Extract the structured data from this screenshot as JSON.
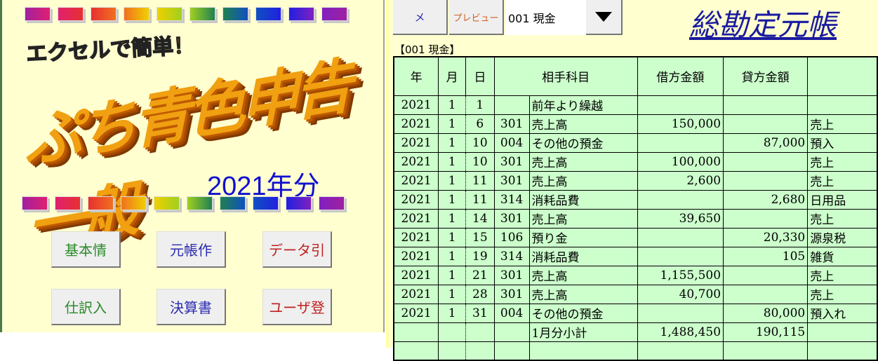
{
  "left": {
    "strip_colors": [
      "#a020a0",
      "#e02070",
      "#e83030",
      "#f07020",
      "#f0d000",
      "#a0d020",
      "#208050",
      "#1050c0",
      "#2020e0",
      "#8020c0"
    ],
    "tagline": "エクセルで簡単！",
    "logo": "ぷち青色申告一般",
    "year": "2021年分",
    "buttons": [
      {
        "label": "基本情",
        "color": "g"
      },
      {
        "label": "元帳作",
        "color": "b"
      },
      {
        "label": "データ引",
        "color": "r"
      },
      {
        "label": "仕訳入",
        "color": "g"
      },
      {
        "label": "決算書",
        "color": "b"
      },
      {
        "label": "ユーザ登",
        "color": "r"
      }
    ]
  },
  "toolbar": {
    "menu": "メ",
    "preview": "プレビュー",
    "account_select": "001 現金",
    "dropdown_icon": "triangle-down"
  },
  "title": "総勘定元帳",
  "account_label": "【001  現金】",
  "table": {
    "headers": [
      "年",
      "月",
      "日",
      "相手科目",
      "借方金額",
      "貸方金額",
      ""
    ],
    "rows": [
      [
        "2021",
        "1",
        "1",
        "",
        "前年より繰越",
        "",
        "",
        ""
      ],
      [
        "2021",
        "1",
        "6",
        "301",
        "売上高",
        "150,000",
        "",
        "売上"
      ],
      [
        "2021",
        "1",
        "10",
        "004",
        "その他の預金",
        "",
        "87,000",
        "預入"
      ],
      [
        "2021",
        "1",
        "10",
        "301",
        "売上高",
        "100,000",
        "",
        "売上"
      ],
      [
        "2021",
        "1",
        "11",
        "301",
        "売上高",
        "2,600",
        "",
        "売上"
      ],
      [
        "2021",
        "1",
        "11",
        "314",
        "消耗品費",
        "",
        "2,680",
        "日用品"
      ],
      [
        "2021",
        "1",
        "14",
        "301",
        "売上高",
        "39,650",
        "",
        "売上"
      ],
      [
        "2021",
        "1",
        "15",
        "106",
        "預り金",
        "",
        "20,330",
        "源泉税"
      ],
      [
        "2021",
        "1",
        "19",
        "314",
        "消耗品費",
        "",
        "105",
        "雑貨"
      ],
      [
        "2021",
        "1",
        "21",
        "301",
        "売上高",
        "1,155,500",
        "",
        "売上"
      ],
      [
        "2021",
        "1",
        "28",
        "301",
        "売上高",
        "40,700",
        "",
        "売上"
      ],
      [
        "2021",
        "1",
        "31",
        "004",
        "その他の預金",
        "",
        "80,000",
        "預入れ"
      ],
      [
        "",
        "",
        "",
        "",
        "1月分小計",
        "1,488,450",
        "190,115",
        ""
      ],
      [
        "",
        "",
        "",
        "",
        "",
        "",
        "",
        ""
      ]
    ]
  }
}
